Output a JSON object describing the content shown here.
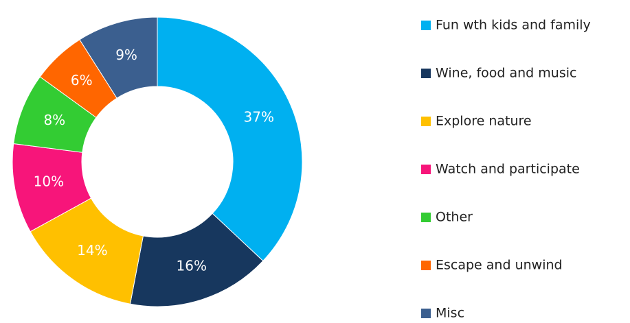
{
  "chart_data": {
    "type": "donut",
    "categories": [
      "Fun wth kids and family",
      "Wine, food and music",
      "Explore nature",
      "Watch and participate",
      "Other",
      "Escape and unwind",
      "Misc"
    ],
    "values": [
      37,
      16,
      14,
      10,
      8,
      6,
      9
    ],
    "value_labels": [
      "37%",
      "16%",
      "14%",
      "10%",
      "8%",
      "6%",
      "9%"
    ],
    "colors": [
      "#00b0f0",
      "#17375e",
      "#ffc000",
      "#f7157a",
      "#33cc33",
      "#ff6600",
      "#3b5f8f"
    ],
    "legend": "right"
  }
}
